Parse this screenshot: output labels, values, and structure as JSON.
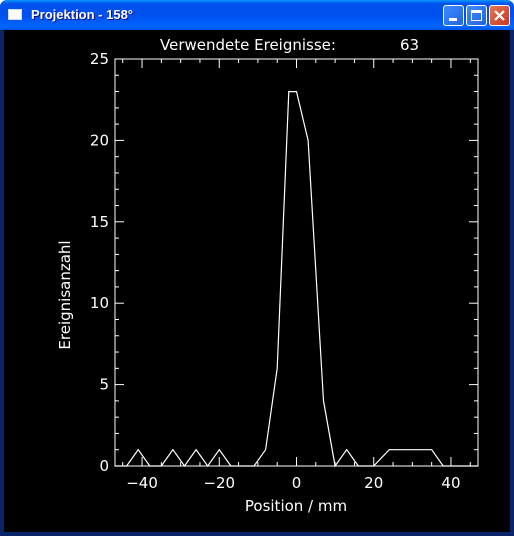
{
  "window": {
    "title": "Projektion - 158°",
    "buttons": {
      "minimize": "minimize",
      "maximize": "maximize",
      "close": "close"
    }
  },
  "header": {
    "label": "Verwendete Ereignisse:",
    "count": "63"
  },
  "colors": {
    "titlebar": "#0055ea",
    "plot_background": "#000000",
    "plot_foreground": "#ffffff"
  },
  "chart_data": {
    "type": "line",
    "title": "Verwendete Ereignisse:    63",
    "xlabel": "Position / mm",
    "ylabel": "Ereignisanzahl",
    "xlim": [
      -47,
      47
    ],
    "ylim": [
      0,
      25
    ],
    "x_ticks": [
      -40,
      -20,
      0,
      20,
      40
    ],
    "x_tick_labels": [
      "−40",
      "−20",
      "0",
      "20",
      "40"
    ],
    "y_ticks": [
      0,
      5,
      10,
      15,
      20,
      25
    ],
    "y_tick_labels": [
      "0",
      "5",
      "10",
      "15",
      "20",
      "25"
    ],
    "grid": false,
    "series": [
      {
        "x": [
          -47,
          -44,
          -41,
          -38,
          -35,
          -32,
          -29,
          -26,
          -23,
          -20,
          -17,
          -14,
          -11,
          -8,
          -5,
          -2,
          0,
          3,
          7,
          10,
          13,
          16,
          20,
          24,
          28,
          32,
          35,
          38,
          41,
          47
        ],
        "y": [
          0,
          0,
          1,
          0,
          0,
          1,
          0,
          1,
          0,
          1,
          0,
          0,
          0,
          1,
          6,
          23,
          23,
          20,
          4,
          0,
          1,
          0,
          0,
          1,
          1,
          1,
          1,
          0,
          0,
          0
        ]
      }
    ]
  }
}
